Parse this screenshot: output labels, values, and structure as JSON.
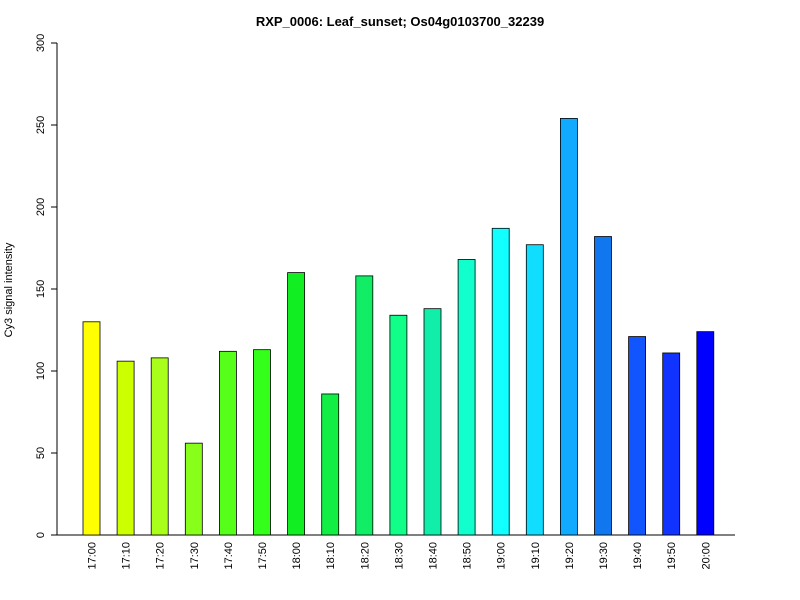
{
  "chart_data": {
    "type": "bar",
    "title": "RXP_0006: Leaf_sunset; Os04g0103700_32239",
    "xlabel": "",
    "ylabel": "Cy3 signal intensity",
    "ylim": [
      0,
      300
    ],
    "yticks": [
      0,
      50,
      100,
      150,
      200,
      250,
      300
    ],
    "categories": [
      "17:00",
      "17:10",
      "17:20",
      "17:30",
      "17:40",
      "17:50",
      "18:00",
      "18:10",
      "18:20",
      "18:30",
      "18:40",
      "18:50",
      "19:00",
      "19:10",
      "19:20",
      "19:30",
      "19:40",
      "19:50",
      "20:00"
    ],
    "values": [
      130,
      106,
      108,
      56,
      112,
      113,
      160,
      86,
      158,
      134,
      138,
      168,
      187,
      177,
      254,
      182,
      121,
      111,
      124
    ],
    "colors": [
      "#FFFF00",
      "#CCFF00",
      "#AAFF1A",
      "#88FF1A",
      "#55FF1A",
      "#33FF1A",
      "#11EE22",
      "#11EE44",
      "#11EE66",
      "#11FF88",
      "#11EEAA",
      "#11FFCC",
      "#11FFFF",
      "#11DDFF",
      "#11AAFF",
      "#1177EE",
      "#1155FF",
      "#1133FF",
      "#0000FF"
    ]
  }
}
